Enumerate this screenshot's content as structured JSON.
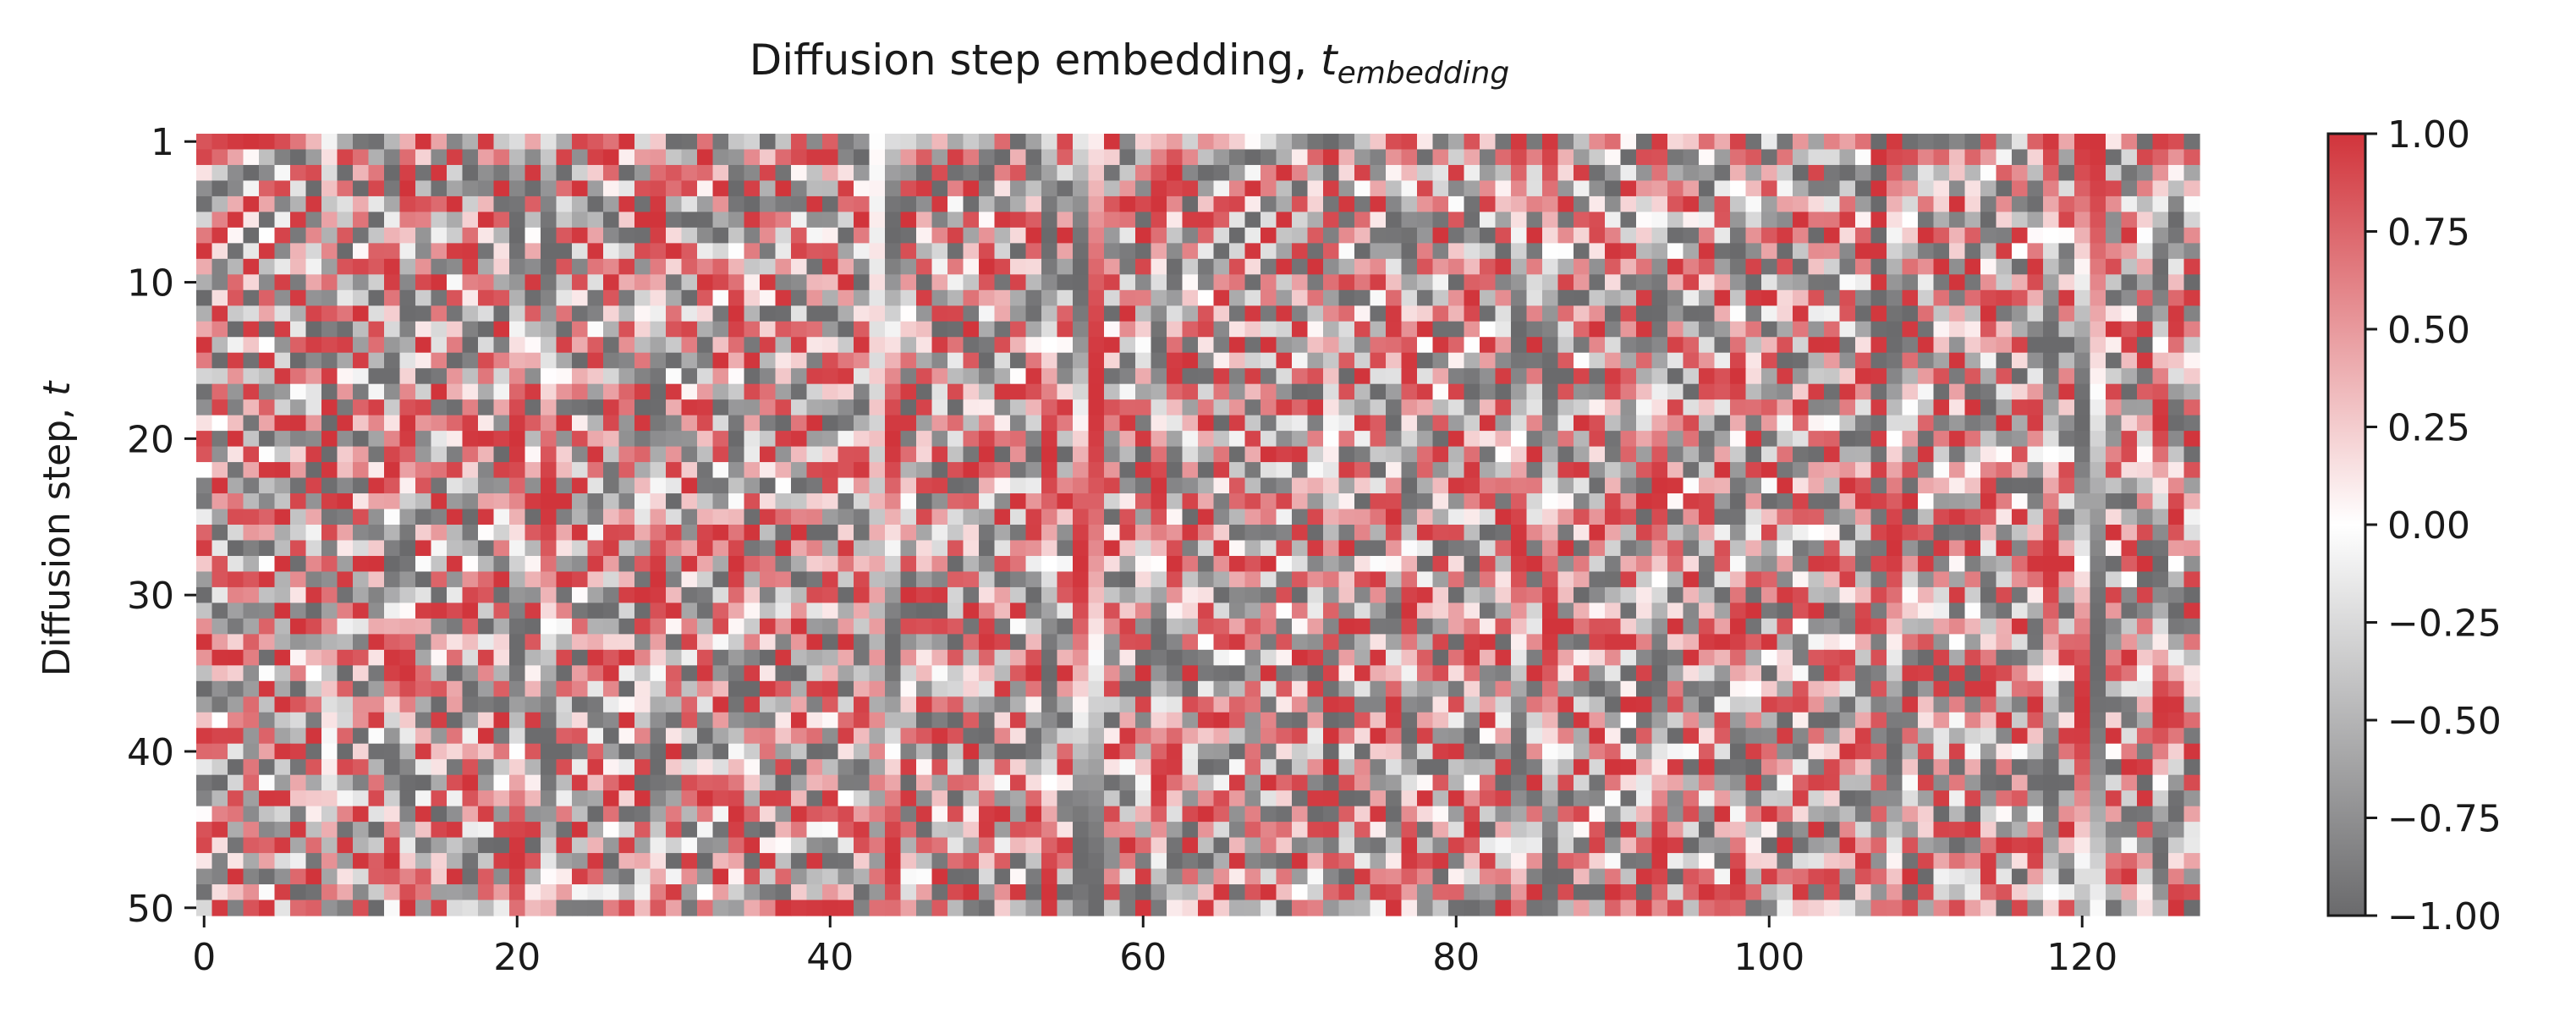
{
  "chart_data": {
    "type": "heatmap",
    "title_main": "Diffusion step embedding, ",
    "title_symbol": "t",
    "title_subscript": "embedding",
    "ylabel_main": "Diffusion step, ",
    "ylabel_symbol": "t",
    "xlabel": "",
    "x_count": 128,
    "y_count": 50,
    "x_ticks": [
      0,
      20,
      40,
      60,
      80,
      100,
      120
    ],
    "y_ticks": [
      1,
      10,
      20,
      30,
      40,
      50
    ],
    "x_range": [
      0,
      127
    ],
    "y_range": [
      1,
      50
    ],
    "colorbar": {
      "range": [
        -1.0,
        1.0
      ],
      "ticks": [
        1.0,
        0.75,
        0.5,
        0.25,
        0.0,
        -0.25,
        -0.5,
        -0.75,
        -1.0
      ],
      "tick_labels": [
        "1.00",
        "0.75",
        "0.50",
        "0.25",
        "0.00",
        "−0.25",
        "−0.50",
        "−0.75",
        "−1.00"
      ]
    },
    "colors": {
      "positive": "#d1343b",
      "zero": "#ffffff",
      "negative": "#6a6a6c"
    },
    "values_note_free": true,
    "grid": false
  }
}
